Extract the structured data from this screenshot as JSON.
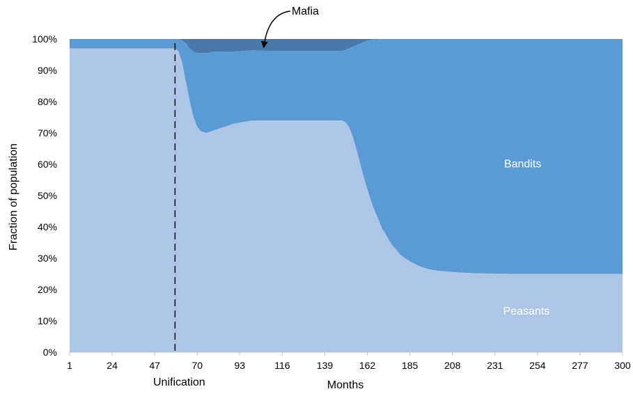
{
  "chart_data": {
    "type": "area",
    "stacked": true,
    "xlabel": "Months",
    "ylabel": "Fraction of population",
    "xlim": [
      1,
      300
    ],
    "ylim": [
      0,
      100
    ],
    "y_ticks": [
      "0%",
      "10%",
      "20%",
      "30%",
      "40%",
      "50%",
      "60%",
      "70%",
      "80%",
      "90%",
      "100%"
    ],
    "x_ticks": [
      "1",
      "24",
      "47",
      "70",
      "93",
      "116",
      "139",
      "162",
      "185",
      "208",
      "231",
      "254",
      "277",
      "300"
    ],
    "grid": false,
    "x": [
      1,
      58,
      60,
      62,
      64,
      66,
      68,
      70,
      72,
      75,
      80,
      85,
      90,
      95,
      100,
      110,
      120,
      130,
      140,
      148,
      150,
      152,
      154,
      156,
      158,
      160,
      162,
      165,
      170,
      175,
      180,
      185,
      190,
      195,
      200,
      210,
      220,
      230,
      240,
      260,
      280,
      300
    ],
    "series": [
      {
        "name": "Peasants",
        "color": "#aec6e6",
        "values": [
          97,
          97,
          96,
          92,
          86,
          80,
          75,
          72,
          70.5,
          70,
          71,
          72,
          73,
          73.5,
          74,
          74,
          74,
          74,
          74,
          74,
          73.5,
          72,
          69,
          65,
          60.5,
          56,
          52,
          46.5,
          39.5,
          34.5,
          31,
          29,
          27.5,
          26.5,
          26,
          25.5,
          25.2,
          25.1,
          25,
          25,
          25,
          25
        ]
      },
      {
        "name": "Bandits",
        "color": "#5b9bd5",
        "values": [
          3,
          3,
          4,
          7.5,
          12.5,
          17,
          21,
          23.5,
          25,
          25.5,
          25,
          24,
          23,
          22.7,
          22.4,
          22.2,
          22.2,
          22.2,
          22.2,
          22.2,
          23,
          25,
          28.5,
          33,
          38,
          43,
          47.5,
          53.3,
          60.5,
          65.5,
          69,
          71,
          72.5,
          73.5,
          74,
          74.5,
          74.8,
          74.9,
          75,
          75,
          75,
          75
        ]
      },
      {
        "name": "Mafia",
        "color": "#4a78a8",
        "values": [
          0,
          0,
          0,
          0.5,
          1.5,
          3,
          4,
          4.5,
          4.5,
          4.5,
          4,
          4,
          4,
          3.8,
          3.6,
          3.8,
          3.8,
          3.8,
          3.8,
          3.8,
          3.5,
          3,
          2.5,
          2,
          1.5,
          1,
          0.5,
          0.2,
          0,
          0,
          0,
          0,
          0,
          0,
          0,
          0,
          0,
          0,
          0,
          0,
          0,
          0
        ]
      }
    ],
    "annotations": [
      {
        "text": "Unification",
        "x": 58,
        "style": "dashed-vertical-line"
      },
      {
        "text": "Mafia",
        "target_series": "Mafia",
        "target_x": 106,
        "style": "arrow"
      }
    ],
    "area_labels": [
      {
        "series": "Bandits",
        "text": "Bandits",
        "x": 246,
        "y": 59
      },
      {
        "series": "Peasants",
        "text": "Peasants",
        "x": 248,
        "y": 12
      }
    ]
  }
}
